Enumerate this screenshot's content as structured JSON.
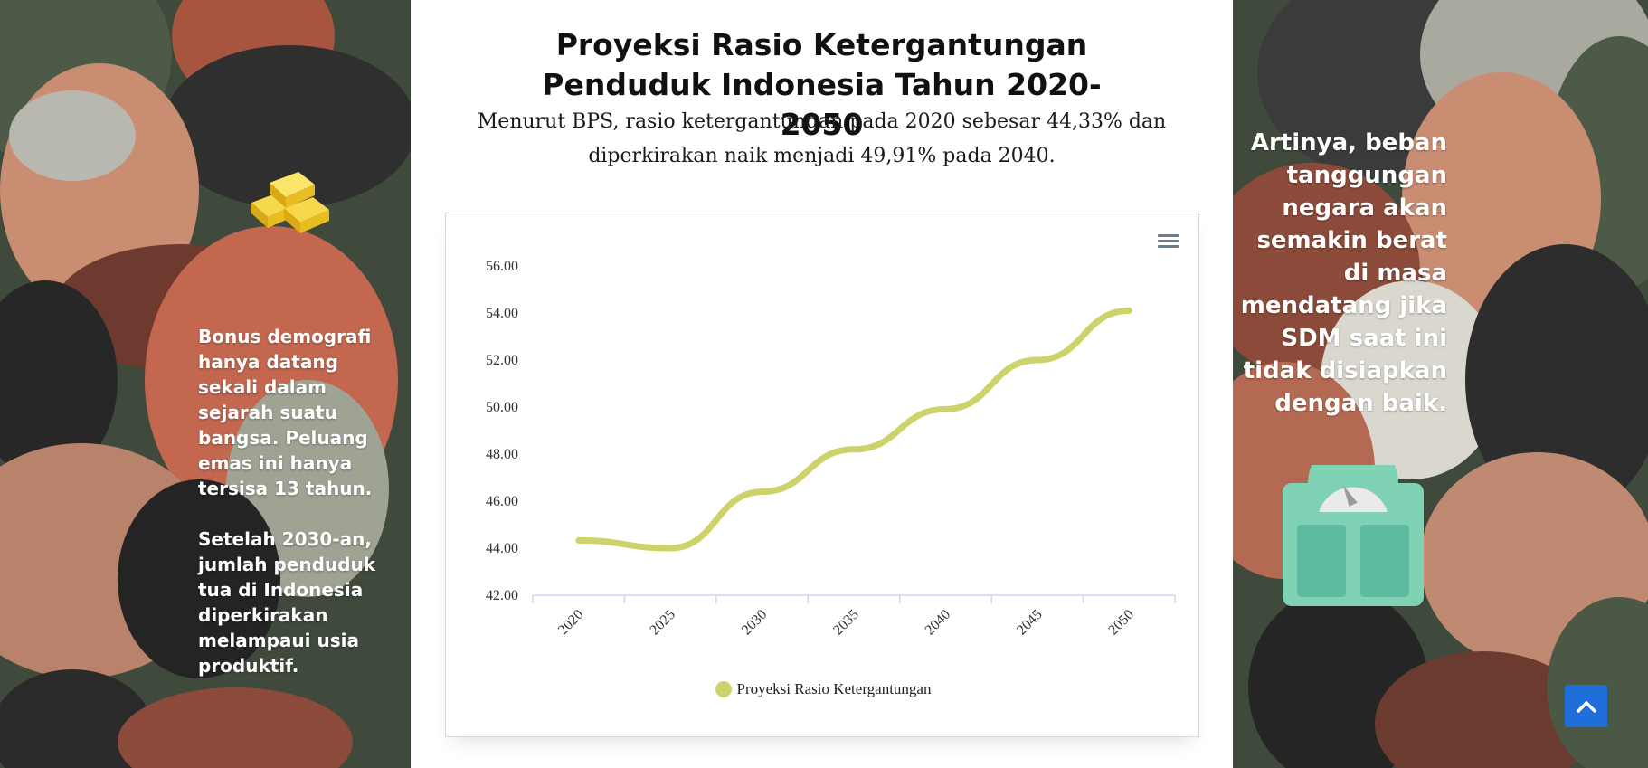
{
  "colors": {
    "background": "#3f4a3c",
    "line": "#cdd26a",
    "accent_button": "#1e6fd9",
    "text_on_bg": "#ffffff"
  },
  "left_panel": {
    "icon": "gold-bars-icon",
    "paragraphs": [
      "Bonus demografi hanya datang sekali dalam sejarah suatu bangsa. Peluang emas ini hanya tersisa 13 tahun.",
      "Setelah 2030-an, jumlah penduduk tua di Indonesia diperkirakan melampaui usia produktif."
    ]
  },
  "main": {
    "title": "Proyeksi Rasio Ketergantungan Penduduk Indonesia Tahun 2020-2050",
    "subtitle": "Menurut BPS, rasio ketergantungan pada 2020 sebesar 44,33% dan diperkirakan naik menjadi 49,91% pada 2040.",
    "menu_icon": "hamburger-menu-icon"
  },
  "right_panel": {
    "text": "Artinya, beban tanggungan negara akan semakin berat di masa mendatang jika SDM saat ini tidak disiapkan dengan baik.",
    "icon": "weighing-scale-icon"
  },
  "scroll_top_icon": "chevron-up-icon",
  "chart_data": {
    "type": "line",
    "x": [
      2020,
      2025,
      2030,
      2035,
      2040,
      2045,
      2050
    ],
    "series": [
      {
        "name": "Proyeksi Rasio Ketergantungan",
        "values": [
          44.33,
          44.0,
          46.4,
          48.2,
          49.91,
          52.0,
          54.1
        ]
      }
    ],
    "yticks": [
      "42.00",
      "44.00",
      "46.00",
      "48.00",
      "50.00",
      "52.00",
      "54.00",
      "56.00"
    ],
    "xticks": [
      "2020",
      "2025",
      "2030",
      "2035",
      "2040",
      "2045",
      "2050"
    ],
    "ylim": [
      42,
      56
    ],
    "xlim": [
      2017.5,
      2052.5
    ],
    "grid": false,
    "legend": "bottom-center",
    "line_color": "#cdd26a"
  }
}
